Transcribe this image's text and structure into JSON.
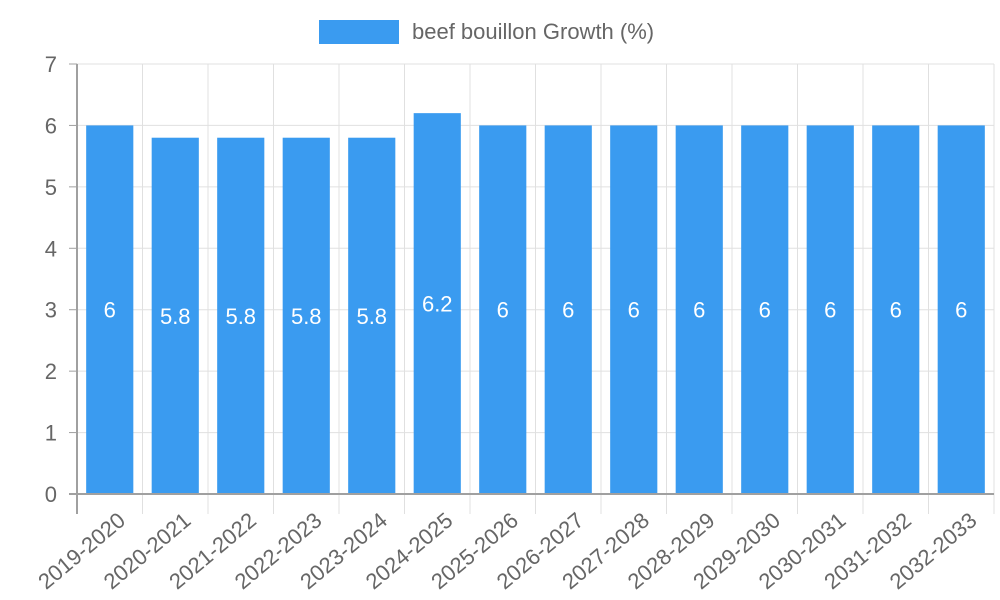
{
  "legend": {
    "label": "beef bouillon Growth (%)",
    "color": "#3a9bf0"
  },
  "colors": {
    "bar": "#3a9bf0",
    "grid": "#e0e0e0",
    "axis": "#a0a0a0",
    "tick_text": "#666666",
    "data_label": "#ffffff"
  },
  "chart_data": {
    "type": "bar",
    "title": "",
    "xlabel": "",
    "ylabel": "",
    "categories": [
      "2019-2020",
      "2020-2021",
      "2021-2022",
      "2022-2023",
      "2023-2024",
      "2024-2025",
      "2025-2026",
      "2026-2027",
      "2027-2028",
      "2028-2029",
      "2029-2030",
      "2030-2031",
      "2031-2032",
      "2032-2033"
    ],
    "series": [
      {
        "name": "beef bouillon Growth (%)",
        "values": [
          6,
          5.8,
          5.8,
          5.8,
          5.8,
          6.2,
          6,
          6,
          6,
          6,
          6,
          6,
          6,
          6
        ]
      }
    ],
    "data_labels": [
      "6",
      "5.8",
      "5.8",
      "5.8",
      "5.8",
      "6.2",
      "6",
      "6",
      "6",
      "6",
      "6",
      "6",
      "6",
      "6"
    ],
    "ylim": [
      0,
      7
    ],
    "yticks": [
      0,
      1,
      2,
      3,
      4,
      5,
      6,
      7
    ],
    "grid": true,
    "legend_position": "top"
  }
}
